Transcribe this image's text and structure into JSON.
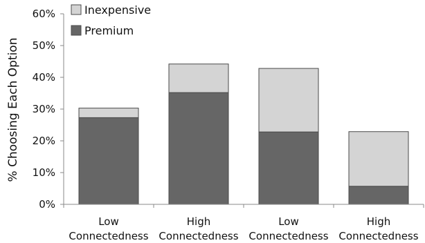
{
  "chart_data": {
    "type": "bar",
    "stacked": true,
    "categories": [
      [
        "Low",
        "Connectedness"
      ],
      [
        "High",
        "Connectedness"
      ],
      [
        "Low",
        "Connectedness"
      ],
      [
        "High",
        "Connectedness"
      ]
    ],
    "series": [
      {
        "name": "Premium",
        "color": "#666666",
        "values": [
          27.3,
          35.2,
          22.8,
          5.7
        ]
      },
      {
        "name": "Inexpensive",
        "color": "#d4d4d4",
        "values": [
          3.0,
          9.0,
          20.0,
          17.2
        ]
      }
    ],
    "ylabel": "% Choosing Each Option",
    "ylim": [
      0,
      60
    ],
    "yticks": [
      "0%",
      "10%",
      "20%",
      "30%",
      "40%",
      "50%",
      "60%"
    ],
    "legend": {
      "placement": "top-left",
      "order": [
        "Inexpensive",
        "Premium"
      ]
    },
    "grid": false
  }
}
